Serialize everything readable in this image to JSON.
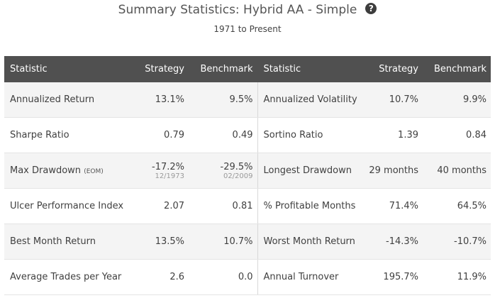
{
  "header": {
    "title": "Summary Statistics: Hybrid AA - Simple",
    "help_icon": "question-circle-icon",
    "subtitle": "1971 to Present"
  },
  "table": {
    "columns": [
      "Statistic",
      "Strategy",
      "Benchmark",
      "Statistic",
      "Strategy",
      "Benchmark"
    ],
    "rows": [
      {
        "left": {
          "label": "Annualized Return",
          "strategy": "13.1%",
          "benchmark": "9.5%"
        },
        "right": {
          "label": "Annualized Volatility",
          "strategy": "10.7%",
          "benchmark": "9.9%"
        }
      },
      {
        "left": {
          "label": "Sharpe Ratio",
          "strategy": "0.79",
          "benchmark": "0.49"
        },
        "right": {
          "label": "Sortino Ratio",
          "strategy": "1.39",
          "benchmark": "0.84"
        }
      },
      {
        "left": {
          "label": "Max Drawdown",
          "label_note": "(EOM)",
          "strategy": "-17.2%",
          "strategy_date": "12/1973",
          "benchmark": "-29.5%",
          "benchmark_date": "02/2009"
        },
        "right": {
          "label": "Longest Drawdown",
          "strategy": "29 months",
          "benchmark": "40 months"
        }
      },
      {
        "left": {
          "label": "Ulcer Performance Index",
          "strategy": "2.07",
          "benchmark": "0.81"
        },
        "right": {
          "label": "% Profitable Months",
          "strategy": "71.4%",
          "benchmark": "64.5%"
        }
      },
      {
        "left": {
          "label": "Best Month Return",
          "strategy": "13.5%",
          "benchmark": "10.7%"
        },
        "right": {
          "label": "Worst Month Return",
          "strategy": "-14.3%",
          "benchmark": "-10.7%"
        }
      },
      {
        "left": {
          "label": "Average Trades per Year",
          "strategy": "2.6",
          "benchmark": "0.0"
        },
        "right": {
          "label": "Annual Turnover",
          "strategy": "195.7%",
          "benchmark": "11.9%"
        }
      }
    ]
  }
}
